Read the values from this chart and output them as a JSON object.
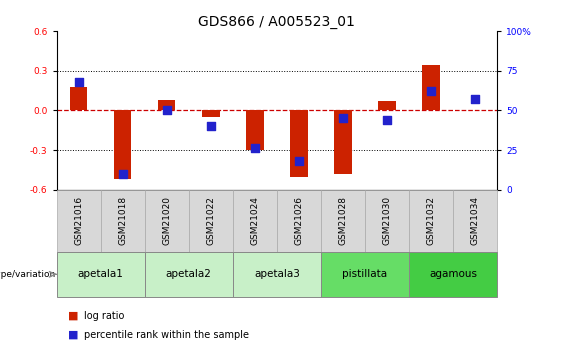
{
  "title": "GDS866 / A005523_01",
  "samples": [
    "GSM21016",
    "GSM21018",
    "GSM21020",
    "GSM21022",
    "GSM21024",
    "GSM21026",
    "GSM21028",
    "GSM21030",
    "GSM21032",
    "GSM21034"
  ],
  "log_ratios": [
    0.18,
    -0.52,
    0.08,
    -0.05,
    -0.3,
    -0.5,
    -0.48,
    0.07,
    0.34,
    0.0
  ],
  "percentile_ranks": [
    68,
    10,
    50,
    40,
    26,
    18,
    45,
    44,
    62,
    57
  ],
  "groups": [
    {
      "label": "apetala1",
      "indices": [
        0,
        1
      ],
      "color": "#c8f0c8"
    },
    {
      "label": "apetala2",
      "indices": [
        2,
        3
      ],
      "color": "#c8f0c8"
    },
    {
      "label": "apetala3",
      "indices": [
        4,
        5
      ],
      "color": "#c8f0c8"
    },
    {
      "label": "pistillata",
      "indices": [
        6,
        7
      ],
      "color": "#66dd66"
    },
    {
      "label": "agamous",
      "indices": [
        8,
        9
      ],
      "color": "#44cc44"
    }
  ],
  "ylim_left": [
    -0.6,
    0.6
  ],
  "ylim_right": [
    0,
    100
  ],
  "yticks_left": [
    -0.6,
    -0.3,
    0.0,
    0.3,
    0.6
  ],
  "yticks_right": [
    0,
    25,
    50,
    75,
    100
  ],
  "bar_color": "#cc2200",
  "dot_color": "#2222cc",
  "ref_line_color": "#cc0000",
  "grid_color": "#000000",
  "bar_width": 0.4,
  "dot_size": 28,
  "title_fontsize": 10,
  "tick_fontsize": 6.5,
  "group_label_fontsize": 7.5,
  "genotype_label": "genotype/variation",
  "sample_box_color": "#d8d8d8",
  "group_colors": [
    "#c8f0c8",
    "#c8f0c8",
    "#c8f0c8",
    "#66dd66",
    "#44cc44"
  ]
}
